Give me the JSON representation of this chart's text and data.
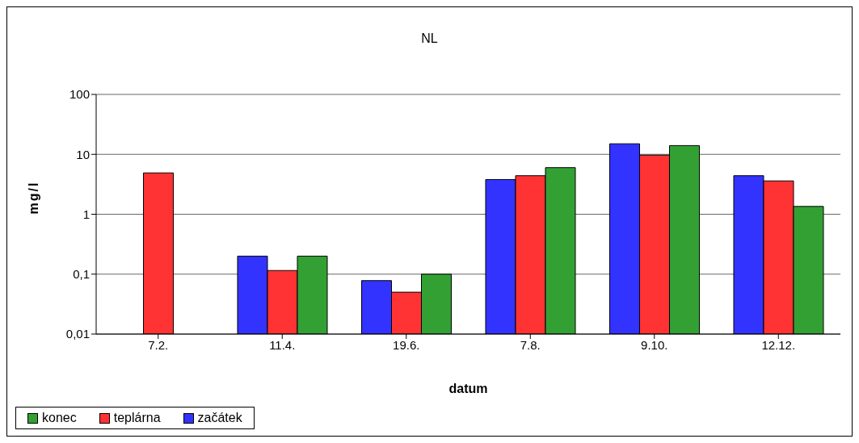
{
  "chart_data": {
    "type": "bar",
    "title": "NL",
    "xlabel": "datum",
    "ylabel": "mg/l",
    "categories": [
      "7.2.",
      "11.4.",
      "19.6.",
      "7.8.",
      "9.10.",
      "12.12."
    ],
    "series": [
      {
        "name": "začátek",
        "color": "#3333ff",
        "values": [
          null,
          0.2,
          0.078,
          3.8,
          15,
          4.4
        ]
      },
      {
        "name": "teplárna",
        "color": "#ff3333",
        "values": [
          4.9,
          0.115,
          0.05,
          4.4,
          9.7,
          3.6
        ]
      },
      {
        "name": "konec",
        "color": "#33a033",
        "values": [
          null,
          0.2,
          0.1,
          6,
          14,
          1.35
        ]
      }
    ],
    "log": true,
    "ylim": [
      0.01,
      100
    ],
    "yticks": [
      {
        "value": 0.01,
        "label": "0,01"
      },
      {
        "value": 0.1,
        "label": "0,1"
      },
      1,
      10,
      100
    ],
    "grid": "y",
    "legend": "bottom"
  }
}
